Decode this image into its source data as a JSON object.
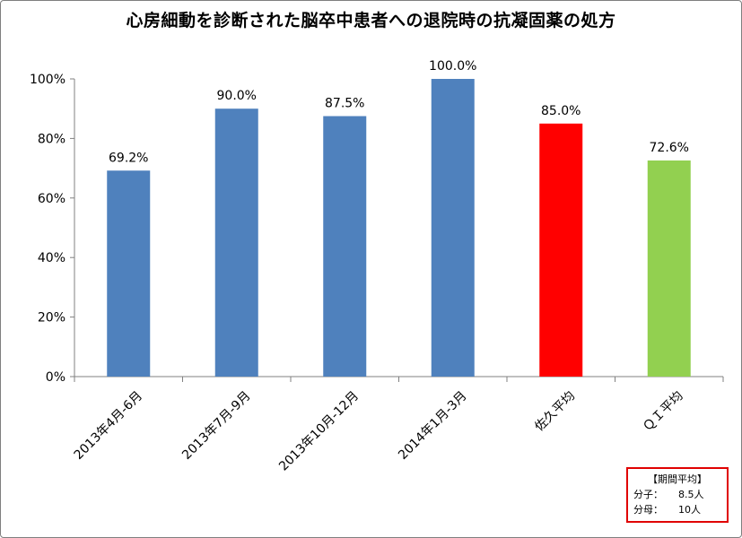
{
  "chart_data": {
    "type": "bar",
    "title": "心房細動を診断された脳卒中患者への退院時の抗凝固薬の処方",
    "categories": [
      "2013年4月-6月",
      "2013年7月-9月",
      "2013年10月-12月",
      "2014年1月-3月",
      "佐久平均",
      "ＱＩ平均"
    ],
    "values": [
      69.2,
      90.0,
      87.5,
      100.0,
      85.0,
      72.6
    ],
    "data_labels": [
      "69.2%",
      "90.0%",
      "87.5%",
      "100.0%",
      "85.0%",
      "72.6%"
    ],
    "bar_colors": [
      "#4f81bd",
      "#4f81bd",
      "#4f81bd",
      "#4f81bd",
      "#ff0000",
      "#92d050"
    ],
    "ylim": [
      0,
      100
    ],
    "yticks": [
      0,
      20,
      40,
      60,
      80,
      100
    ],
    "ytick_labels": [
      "0%",
      "20%",
      "40%",
      "60%",
      "80%",
      "100%"
    ],
    "xlabel": "",
    "ylabel": "",
    "grid": false,
    "legend": "none"
  },
  "period_box": {
    "header": "【期間平均】",
    "numerator_label": "分子：",
    "numerator_value": "8.5人",
    "denominator_label": "分母：",
    "denominator_value": "10人",
    "border_color": "#e00000"
  }
}
